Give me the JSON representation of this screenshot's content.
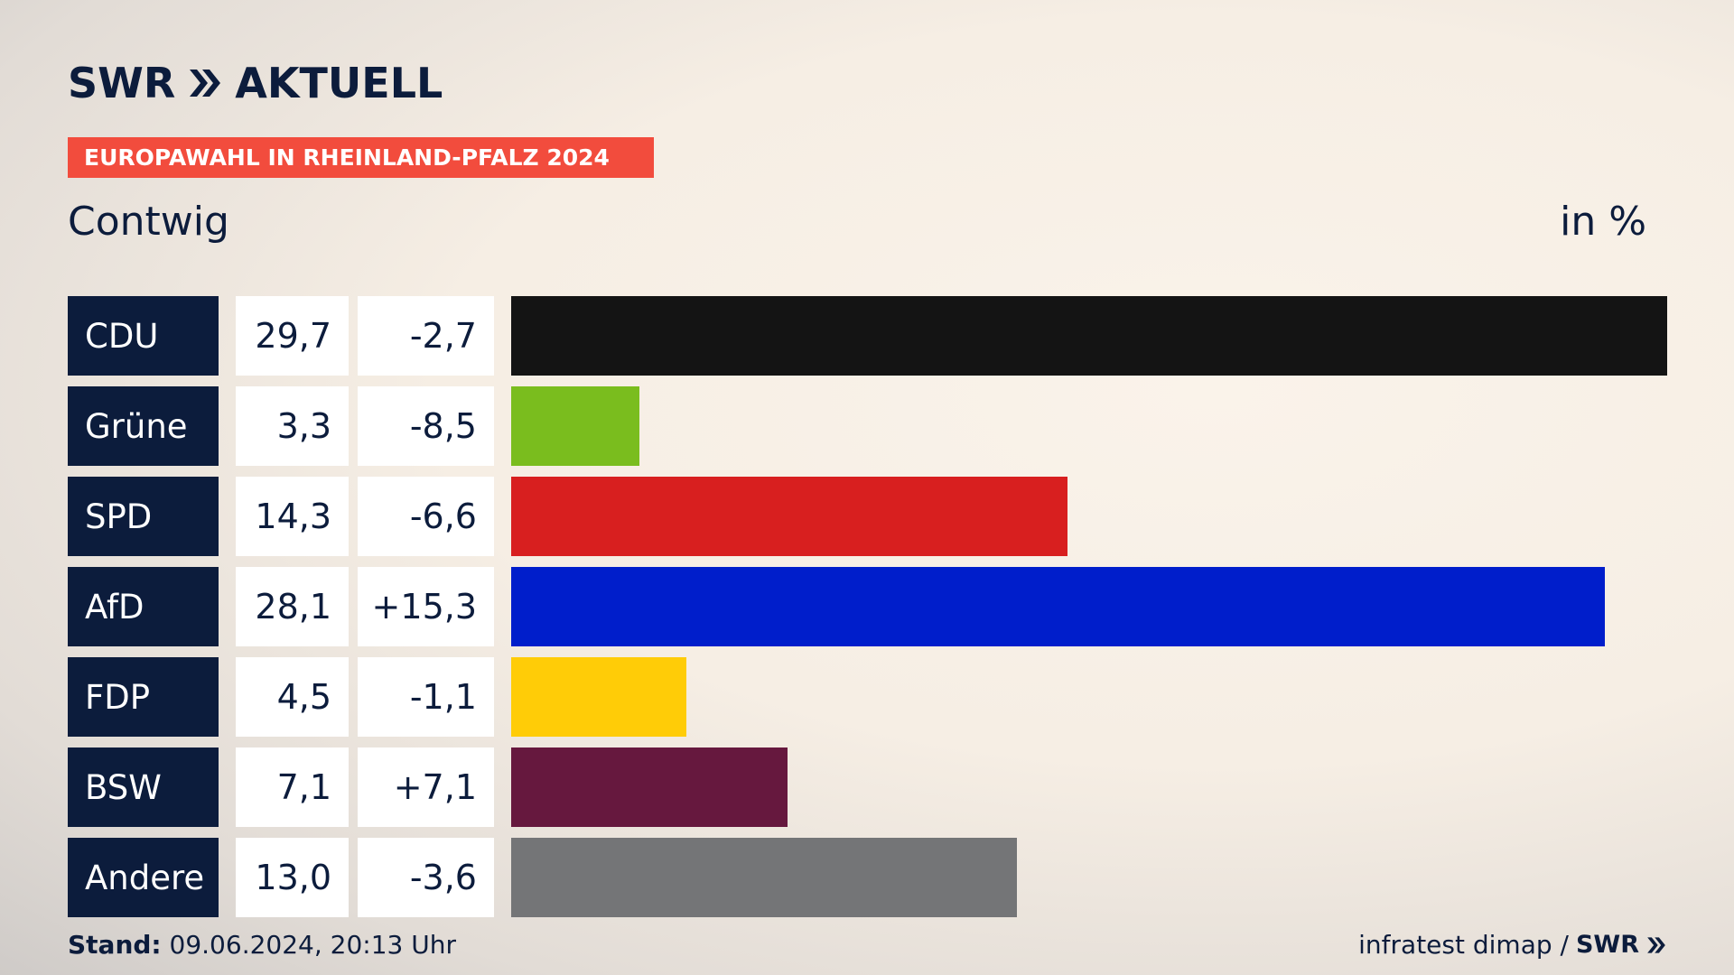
{
  "brand": {
    "logo_text_1": "SWR",
    "logo_text_2": "AKTUELL"
  },
  "tag": "EUROPAWAHL IN RHEINLAND-PFALZ 2024",
  "region": "Contwig",
  "unit": "in %",
  "colors": {
    "navy": "#0c1c3c",
    "tag": "#f24c3d"
  },
  "chart_data": {
    "type": "bar",
    "orientation": "horizontal",
    "categories": [
      "CDU",
      "Grüne",
      "SPD",
      "AfD",
      "FDP",
      "BSW",
      "Andere"
    ],
    "values": [
      29.7,
      3.3,
      14.3,
      28.1,
      4.5,
      7.1,
      13.0
    ],
    "value_labels": [
      "29,7",
      "3,3",
      "14,3",
      "28,1",
      "4,5",
      "7,1",
      "13,0"
    ],
    "diff_labels": [
      "-2,7",
      "-8,5",
      "-6,6",
      "+15,3",
      "-1,1",
      "+7,1",
      "-3,6"
    ],
    "colors": [
      "#141414",
      "#7abd1e",
      "#d81f1f",
      "#001ecb",
      "#ffcc07",
      "#66183e",
      "#747577"
    ],
    "xlim": [
      0,
      29.7
    ]
  },
  "footer": {
    "stand_label": "Stand:",
    "stand_value": "09.06.2024, 20:13 Uhr",
    "source": "infratest dimap /",
    "source_logo": "SWR"
  }
}
